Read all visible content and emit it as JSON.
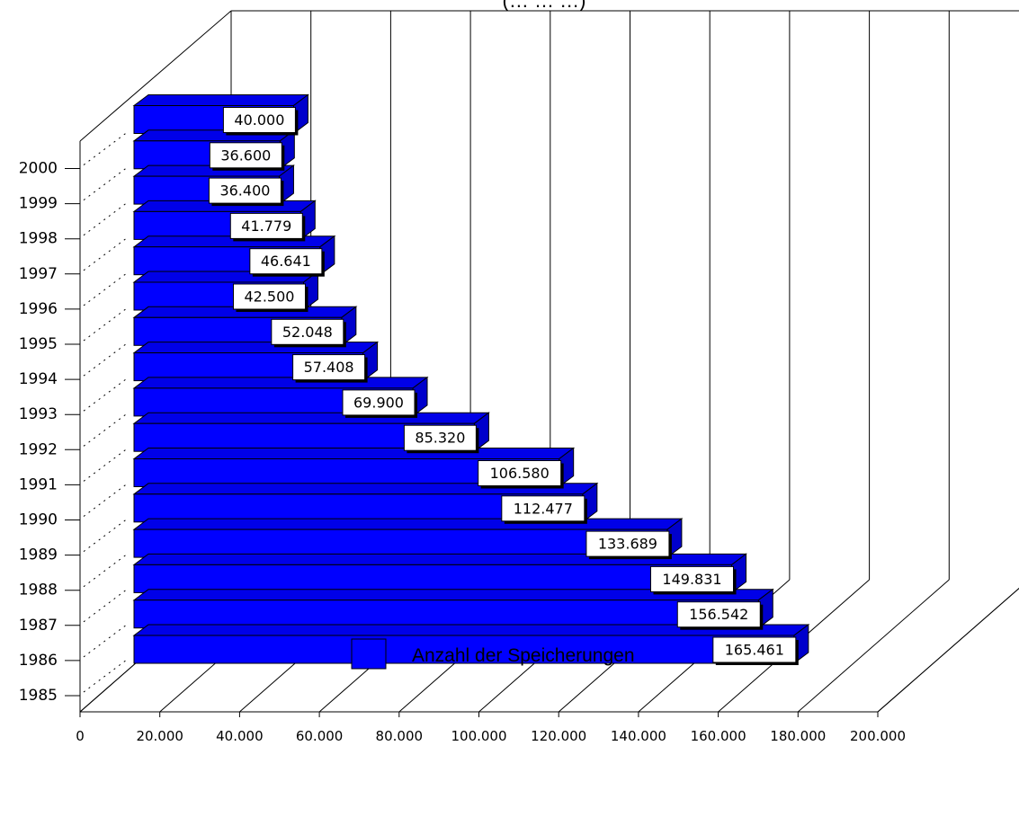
{
  "chart_data": {
    "type": "bar",
    "orientation": "horizontal",
    "style": "3d",
    "title": "(… … …)",
    "categories": [
      "1985",
      "1986",
      "1987",
      "1988",
      "1989",
      "1990",
      "1991",
      "1992",
      "1993",
      "1994",
      "1995",
      "1996",
      "1997",
      "1998",
      "1999",
      "2000"
    ],
    "series": [
      {
        "name": "Anzahl der Speicherungen",
        "values": [
          165461,
          156542,
          149831,
          133689,
          112477,
          106580,
          85320,
          69900,
          57408,
          52048,
          42500,
          46641,
          41779,
          36400,
          36600,
          40000
        ],
        "value_labels": [
          "165.461",
          "156.542",
          "149.831",
          "133.689",
          "112.477",
          "106.580",
          "85.320",
          "69.900",
          "57.408",
          "52.048",
          "42.500",
          "46.641",
          "41.779",
          "36.400",
          "36.600",
          "40.000"
        ],
        "color": "#0000ff"
      }
    ],
    "x_ticks": [
      0,
      20000,
      40000,
      60000,
      80000,
      100000,
      120000,
      140000,
      160000,
      180000,
      200000
    ],
    "x_tick_labels": [
      "0",
      "20.000",
      "40.000",
      "60.000",
      "80.000",
      "100.000",
      "120.000",
      "140.000",
      "160.000",
      "180.000",
      "200.000"
    ],
    "xlim": [
      0,
      200000
    ],
    "xlabel": "",
    "ylabel": "",
    "grid": true,
    "legend_position": "bottom-center"
  }
}
